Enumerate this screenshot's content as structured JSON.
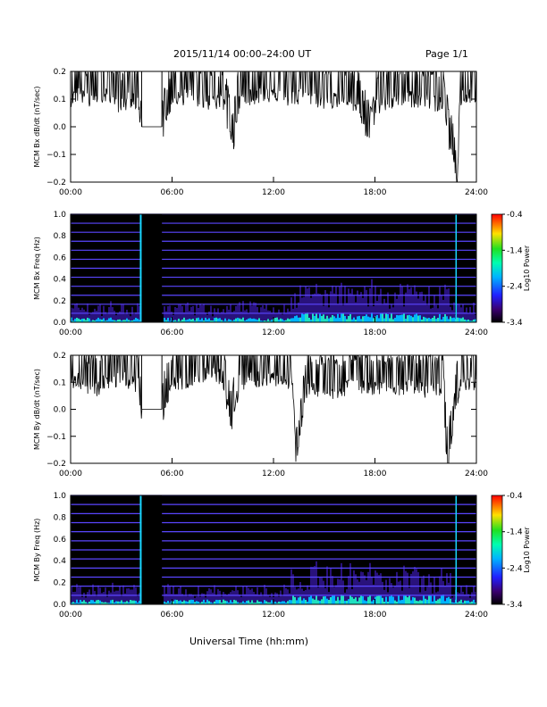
{
  "header": {
    "title": "2015/11/14  00:00–24:00 UT",
    "page": "Page 1/1"
  },
  "footer": {
    "xlabel": "Universal Time (hh:mm)"
  },
  "chart_data": [
    {
      "id": "panel-bx-dbdt",
      "type": "line",
      "ylabel": "MCM Bx dB/dt (nT/sec)",
      "xlim": [
        0,
        24
      ],
      "ylim": [
        -0.2,
        0.2
      ],
      "x_ticks": [
        "00:00",
        "06:00",
        "12:00",
        "18:00",
        "24:00"
      ],
      "y_ticks": [
        "0.2",
        "0.1",
        "0.0",
        "−0.1",
        "−0.2"
      ],
      "data_gap": [
        4.2,
        5.4
      ],
      "series": [
        {
          "x": [
            0,
            0.5,
            1.0,
            1.5,
            2.0,
            2.5,
            3.0,
            3.5,
            4.0,
            4.2,
            5.4,
            6.0,
            7.0,
            8.0,
            9.0,
            9.6,
            10.0,
            11.0,
            12.0,
            13.0,
            14.0,
            15.0,
            16.0,
            17.0,
            17.8,
            18.0,
            19.0,
            20.0,
            21.0,
            22.0,
            22.9,
            23.0,
            24.0
          ],
          "y": [
            0.13,
            0.15,
            0.12,
            0.14,
            0.15,
            0.13,
            0.1,
            0.13,
            0.12,
            0.0,
            0.0,
            0.13,
            0.14,
            0.12,
            0.12,
            -0.05,
            0.13,
            0.14,
            0.15,
            0.13,
            0.14,
            0.12,
            0.13,
            0.1,
            -0.05,
            0.1,
            0.12,
            0.13,
            0.12,
            0.11,
            -0.2,
            0.13,
            0.14
          ]
        }
      ]
    },
    {
      "id": "panel-bx-spec",
      "type": "heatmap",
      "ylabel": "MCM Bx Freq (Hz)",
      "xlim": [
        0,
        24
      ],
      "ylim": [
        0,
        1
      ],
      "x_ticks": [
        "00:00",
        "06:00",
        "12:00",
        "18:00",
        "24:00"
      ],
      "y_ticks": [
        "1.0",
        "0.8",
        "0.6",
        "0.4",
        "0.2",
        "0.0"
      ],
      "colorbar": {
        "label": "Log10 Power",
        "range": [
          -3.4,
          -0.4
        ],
        "ticks": [
          "-0.4",
          "-1.4",
          "-2.4",
          "-3.4"
        ]
      },
      "data_gap": [
        4.2,
        5.4
      ],
      "harmonic_lines_hz": [
        0.083,
        0.167,
        0.25,
        0.333,
        0.417,
        0.5,
        0.583,
        0.667,
        0.75,
        0.833,
        0.917,
        1.0
      ]
    },
    {
      "id": "panel-by-dbdt",
      "type": "line",
      "ylabel": "MCM By dB/dt (nT/sec)",
      "xlim": [
        0,
        24
      ],
      "ylim": [
        -0.2,
        0.2
      ],
      "x_ticks": [
        "00:00",
        "06:00",
        "12:00",
        "18:00",
        "24:00"
      ],
      "y_ticks": [
        "0.2",
        "0.1",
        "0.0",
        "−0.1",
        "−0.2"
      ],
      "data_gap": [
        4.2,
        5.4
      ],
      "series": [
        {
          "x": [
            0,
            0.5,
            1.0,
            1.5,
            2.0,
            2.5,
            3.0,
            3.5,
            4.0,
            4.2,
            5.4,
            6.0,
            7.0,
            8.0,
            9.0,
            9.5,
            10.0,
            11.0,
            12.0,
            13.0,
            13.3,
            14.0,
            15.0,
            16.0,
            17.0,
            18.0,
            19.0,
            20.0,
            21.0,
            22.0,
            22.3,
            23.0,
            24.0
          ],
          "y": [
            0.12,
            0.14,
            0.11,
            0.1,
            0.13,
            0.12,
            0.15,
            0.13,
            0.12,
            0.0,
            0.0,
            0.12,
            0.14,
            0.16,
            0.15,
            -0.05,
            0.13,
            0.14,
            0.15,
            0.12,
            -0.2,
            0.11,
            0.09,
            0.1,
            0.12,
            0.11,
            0.1,
            0.12,
            0.1,
            0.11,
            -0.2,
            0.12,
            0.13
          ]
        }
      ]
    },
    {
      "id": "panel-by-spec",
      "type": "heatmap",
      "ylabel": "MCM By Freq (Hz)",
      "xlim": [
        0,
        24
      ],
      "ylim": [
        0,
        1
      ],
      "x_ticks": [
        "00:00",
        "06:00",
        "12:00",
        "18:00",
        "24:00"
      ],
      "y_ticks": [
        "1.0",
        "0.8",
        "0.6",
        "0.4",
        "0.2",
        "0.0"
      ],
      "colorbar": {
        "label": "Log10 Power",
        "range": [
          -3.4,
          -0.4
        ],
        "ticks": [
          "-0.4",
          "-1.4",
          "-2.4",
          "-3.4"
        ]
      },
      "data_gap": [
        4.2,
        5.4
      ],
      "harmonic_lines_hz": [
        0.083,
        0.167,
        0.25,
        0.333,
        0.417,
        0.5,
        0.583,
        0.667,
        0.75,
        0.833,
        0.917,
        1.0
      ]
    }
  ]
}
